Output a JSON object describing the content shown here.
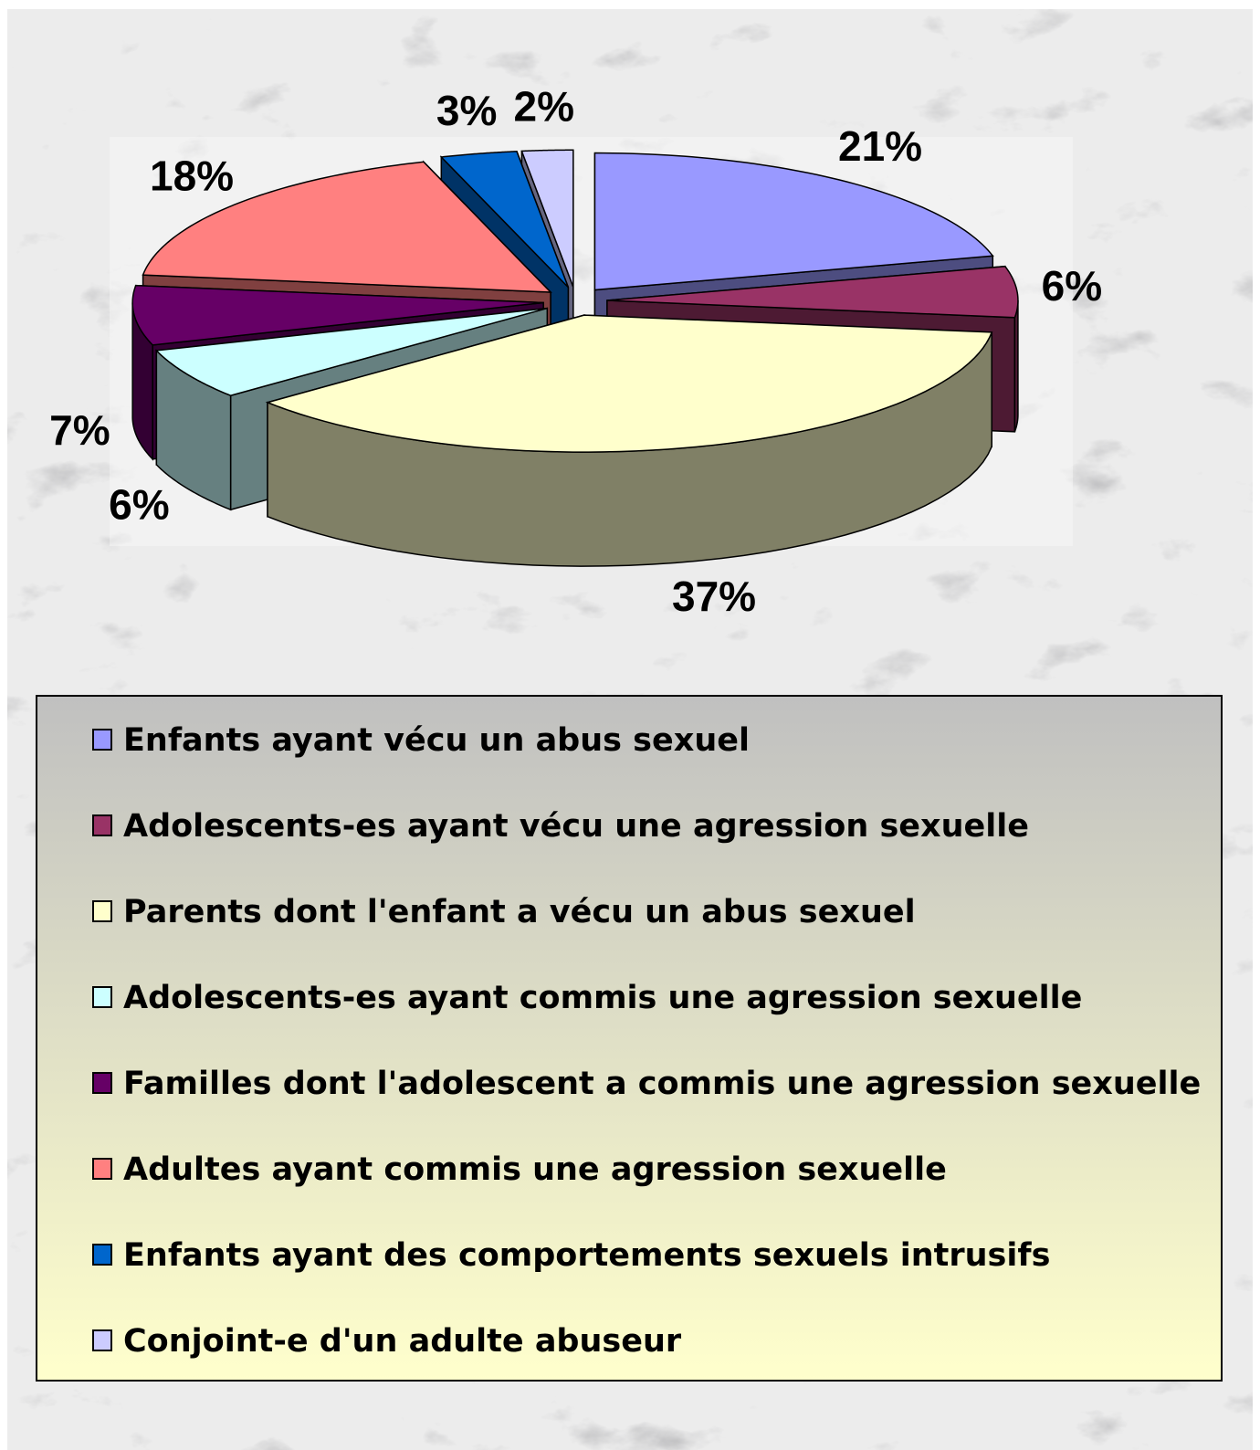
{
  "chart_data": {
    "type": "pie",
    "categories": [
      "Enfants ayant vécu un abus sexuel",
      "Adolescents-es ayant vécu une agression sexuelle",
      "Parents dont l'enfant a vécu un abus sexuel",
      "Adolescents-es ayant commis une agression sexuelle",
      "Familles dont l'adolescent a commis une agression sexuelle",
      "Adultes ayant commis une agression sexuelle",
      "Enfants ayant des comportements sexuels intrusifs",
      "Conjoint-e d'un adulte abuseur"
    ],
    "values": [
      21,
      6,
      37,
      6,
      7,
      18,
      3,
      2
    ],
    "value_labels": [
      "21%",
      "6%",
      "37%",
      "6%",
      "7%",
      "18%",
      "3%",
      "2%"
    ],
    "colors": [
      "#9999ff",
      "#993366",
      "#ffffcc",
      "#ccffff",
      "#660066",
      "#ff8080",
      "#0066cc",
      "#ccccff"
    ],
    "legend": "bottom"
  }
}
